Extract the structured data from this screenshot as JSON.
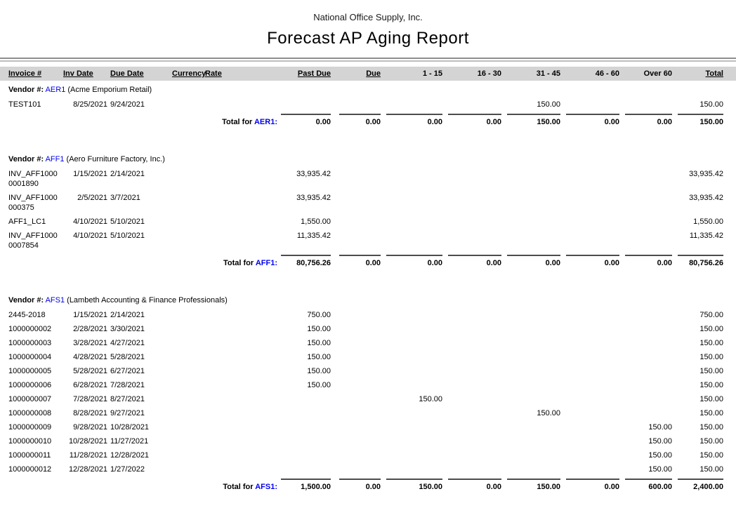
{
  "colors": {
    "link_blue": "#0000ee",
    "header_bar": "#d4d4d4"
  },
  "report": {
    "company": "National Office Supply, Inc.",
    "title": "Forecast AP Aging Report",
    "vendor_label": "Vendor #:",
    "total_label": "Total for",
    "columns": [
      "Invoice #",
      "Inv Date",
      "Due Date",
      "Currency",
      "Rate",
      "Past Due",
      "Due",
      "1 - 15",
      "16 - 30",
      "31 - 45",
      "46 - 60",
      "Over 60",
      "Total"
    ],
    "vendors": [
      {
        "code": "AER1",
        "name": "(Acme Emporium Retail)",
        "rows": [
          {
            "invoice": "TEST101",
            "inv_date": "8/25/2021",
            "due_date": "9/24/2021",
            "b31_45": "150.00",
            "total": "150.00"
          }
        ],
        "totals": {
          "past_due": "0.00",
          "due": "0.00",
          "b1_15": "0.00",
          "b16_30": "0.00",
          "b31_45": "150.00",
          "b46_60": "0.00",
          "over_60": "0.00",
          "total": "150.00"
        }
      },
      {
        "code": "AFF1",
        "name": "(Aero Furniture Factory, Inc.)",
        "rows": [
          {
            "invoice": "INV_AFF1000\n0001890",
            "inv_date": "1/15/2021",
            "due_date": "2/14/2021",
            "past_due": "33,935.42",
            "total": "33,935.42"
          },
          {
            "invoice": "INV_AFF1000\n000375",
            "inv_date": "2/5/2021",
            "due_date": "3/7/2021",
            "past_due": "33,935.42",
            "total": "33,935.42"
          },
          {
            "invoice": "AFF1_LC1",
            "inv_date": "4/10/2021",
            "due_date": "5/10/2021",
            "past_due": "1,550.00",
            "total": "1,550.00"
          },
          {
            "invoice": "INV_AFF1000\n0007854",
            "inv_date": "4/10/2021",
            "due_date": "5/10/2021",
            "past_due": "11,335.42",
            "total": "11,335.42"
          }
        ],
        "totals": {
          "past_due": "80,756.26",
          "due": "0.00",
          "b1_15": "0.00",
          "b16_30": "0.00",
          "b31_45": "0.00",
          "b46_60": "0.00",
          "over_60": "0.00",
          "total": "80,756.26"
        }
      },
      {
        "code": "AFS1",
        "name": "(Lambeth Accounting & Finance Professionals)",
        "rows": [
          {
            "invoice": "2445-2018",
            "inv_date": "1/15/2021",
            "due_date": "2/14/2021",
            "past_due": "750.00",
            "total": "750.00"
          },
          {
            "invoice": "1000000002",
            "inv_date": "2/28/2021",
            "due_date": "3/30/2021",
            "past_due": "150.00",
            "total": "150.00"
          },
          {
            "invoice": "1000000003",
            "inv_date": "3/28/2021",
            "due_date": "4/27/2021",
            "past_due": "150.00",
            "total": "150.00"
          },
          {
            "invoice": "1000000004",
            "inv_date": "4/28/2021",
            "due_date": "5/28/2021",
            "past_due": "150.00",
            "total": "150.00"
          },
          {
            "invoice": "1000000005",
            "inv_date": "5/28/2021",
            "due_date": "6/27/2021",
            "past_due": "150.00",
            "total": "150.00"
          },
          {
            "invoice": "1000000006",
            "inv_date": "6/28/2021",
            "due_date": "7/28/2021",
            "past_due": "150.00",
            "total": "150.00"
          },
          {
            "invoice": "1000000007",
            "inv_date": "7/28/2021",
            "due_date": "8/27/2021",
            "b1_15": "150.00",
            "total": "150.00"
          },
          {
            "invoice": "1000000008",
            "inv_date": "8/28/2021",
            "due_date": "9/27/2021",
            "b31_45": "150.00",
            "total": "150.00"
          },
          {
            "invoice": "1000000009",
            "inv_date": "9/28/2021",
            "due_date": "10/28/2021",
            "over_60": "150.00",
            "total": "150.00"
          },
          {
            "invoice": "1000000010",
            "inv_date": "10/28/2021",
            "due_date": "11/27/2021",
            "over_60": "150.00",
            "total": "150.00"
          },
          {
            "invoice": "1000000011",
            "inv_date": "11/28/2021",
            "due_date": "12/28/2021",
            "over_60": "150.00",
            "total": "150.00"
          },
          {
            "invoice": "1000000012",
            "inv_date": "12/28/2021",
            "due_date": "1/27/2022",
            "over_60": "150.00",
            "total": "150.00"
          }
        ],
        "totals": {
          "past_due": "1,500.00",
          "due": "0.00",
          "b1_15": "150.00",
          "b16_30": "0.00",
          "b31_45": "150.00",
          "b46_60": "0.00",
          "over_60": "600.00",
          "total": "2,400.00"
        }
      }
    ]
  }
}
